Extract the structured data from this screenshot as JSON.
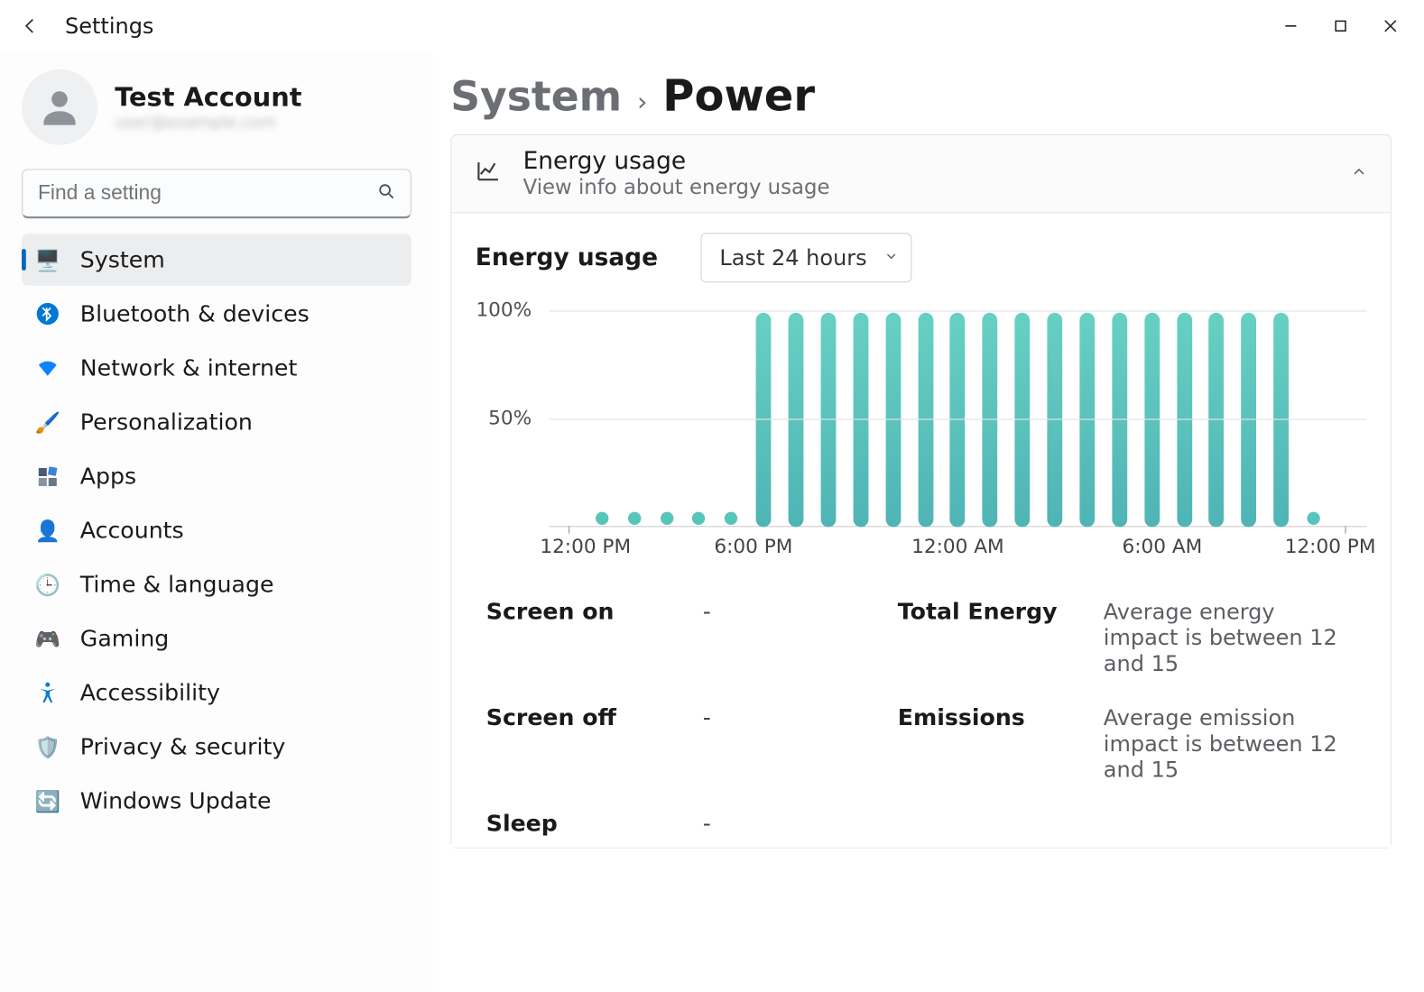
{
  "window": {
    "title": "Settings"
  },
  "account": {
    "name": "Test Account",
    "sub": "user@example.com"
  },
  "search": {
    "placeholder": "Find a setting"
  },
  "sidebar": {
    "items": [
      {
        "label": "System",
        "icon": "🖥️",
        "color": "#0078d4",
        "selected": true
      },
      {
        "label": "Bluetooth & devices",
        "icon": "bt",
        "color": "#0078d4"
      },
      {
        "label": "Network & internet",
        "icon": "wifi",
        "color": "#0a84ff"
      },
      {
        "label": "Personalization",
        "icon": "🖌️",
        "color": "#d87a3a"
      },
      {
        "label": "Apps",
        "icon": "apps",
        "color": "#4b5a73"
      },
      {
        "label": "Accounts",
        "icon": "👤",
        "color": "#1aa871"
      },
      {
        "label": "Time & language",
        "icon": "🕒",
        "color": "#4e7bc1"
      },
      {
        "label": "Gaming",
        "icon": "🎮",
        "color": "#8c97a3"
      },
      {
        "label": "Accessibility",
        "icon": "access",
        "color": "#0a7bdc"
      },
      {
        "label": "Privacy & security",
        "icon": "🛡️",
        "color": "#8f9398"
      },
      {
        "label": "Windows Update",
        "icon": "🔄",
        "color": "#0f8de8"
      }
    ]
  },
  "breadcrumb": {
    "parent": "System",
    "current": "Power"
  },
  "energy_card": {
    "title": "Energy usage",
    "subtitle": "View info about energy usage",
    "section_label": "Energy usage",
    "dropdown": "Last 24 hours"
  },
  "chart": {
    "type": "bar",
    "ylim": [
      0,
      100
    ],
    "yticks": [
      {
        "v": 100,
        "label": "100%"
      },
      {
        "v": 50,
        "label": "50%"
      }
    ],
    "grid_color": "#e3e4e6",
    "bar_color_top": "#67d0c3",
    "bar_color_bottom": "#4fb4b5",
    "dot_color": "#56c5bc",
    "background_color": "#ffffff",
    "bars": [
      {
        "value": 0,
        "dot": false
      },
      {
        "value": 0,
        "dot": true
      },
      {
        "value": 0,
        "dot": true
      },
      {
        "value": 0,
        "dot": true
      },
      {
        "value": 0,
        "dot": true
      },
      {
        "value": 0,
        "dot": true
      },
      {
        "value": 100,
        "dot": false
      },
      {
        "value": 100,
        "dot": false
      },
      {
        "value": 100,
        "dot": false
      },
      {
        "value": 100,
        "dot": false
      },
      {
        "value": 100,
        "dot": false
      },
      {
        "value": 100,
        "dot": false
      },
      {
        "value": 100,
        "dot": false
      },
      {
        "value": 100,
        "dot": false
      },
      {
        "value": 100,
        "dot": false
      },
      {
        "value": 100,
        "dot": false
      },
      {
        "value": 100,
        "dot": false
      },
      {
        "value": 100,
        "dot": false
      },
      {
        "value": 100,
        "dot": false
      },
      {
        "value": 100,
        "dot": false
      },
      {
        "value": 100,
        "dot": false
      },
      {
        "value": 100,
        "dot": false
      },
      {
        "value": 100,
        "dot": false
      },
      {
        "value": 0,
        "dot": true
      },
      {
        "value": 0,
        "dot": false
      }
    ],
    "xticks": [
      {
        "pos": 0,
        "label": "12:00 PM"
      },
      {
        "pos": 25,
        "label": "6:00 PM"
      },
      {
        "pos": 50,
        "label": "12:00 AM"
      },
      {
        "pos": 75,
        "label": "6:00 AM"
      },
      {
        "pos": 100,
        "label": "12:00 PM"
      }
    ]
  },
  "stats": {
    "rows": [
      {
        "label": "Screen on",
        "value": "-",
        "label2": "Total Energy",
        "desc": "Average energy impact is between 12 and 15"
      },
      {
        "label": "Screen off",
        "value": "-",
        "label2": "Emissions",
        "desc": "Average emission impact is between 12 and 15"
      },
      {
        "label": "Sleep",
        "value": "-",
        "label2": "",
        "desc": ""
      }
    ]
  }
}
